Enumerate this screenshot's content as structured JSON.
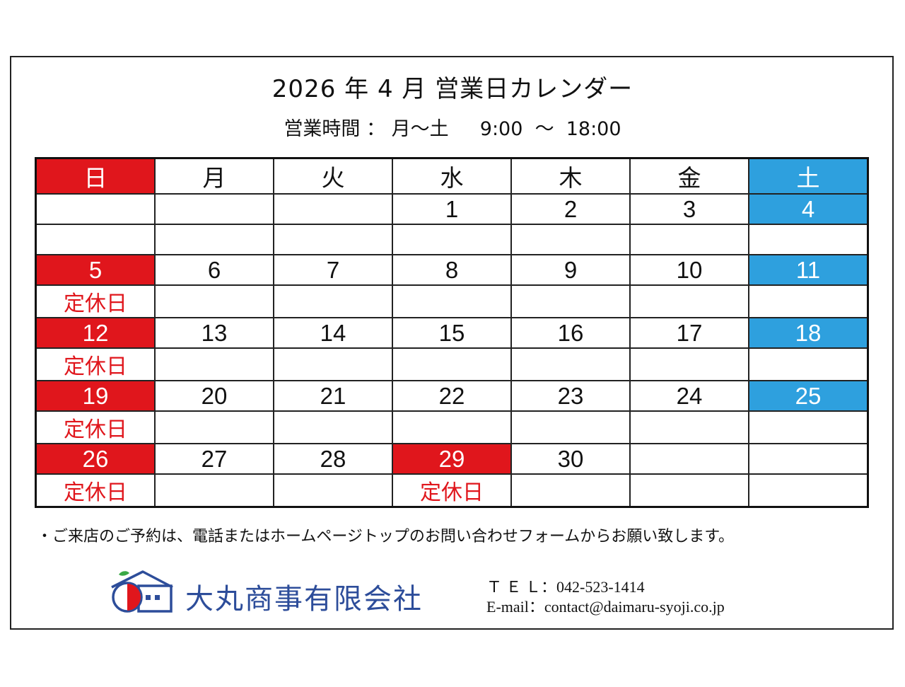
{
  "title": "2026 年 4 月  営業日カレンダー",
  "hours": "営業時間 ： 月～土　  9:00  ～  18:00",
  "weekdays": [
    "日",
    "月",
    "火",
    "水",
    "木",
    "金",
    "土"
  ],
  "closed_label": "定休日",
  "weeks": [
    {
      "days": [
        "",
        "",
        "",
        "1",
        "2",
        "3",
        "4"
      ],
      "notes": [
        "",
        "",
        "",
        "",
        "",
        "",
        ""
      ]
    },
    {
      "days": [
        "5",
        "6",
        "7",
        "8",
        "9",
        "10",
        "11"
      ],
      "notes": [
        "定休日",
        "",
        "",
        "",
        "",
        "",
        ""
      ]
    },
    {
      "days": [
        "12",
        "13",
        "14",
        "15",
        "16",
        "17",
        "18"
      ],
      "notes": [
        "定休日",
        "",
        "",
        "",
        "",
        "",
        ""
      ]
    },
    {
      "days": [
        "19",
        "20",
        "21",
        "22",
        "23",
        "24",
        "25"
      ],
      "notes": [
        "定休日",
        "",
        "",
        "",
        "",
        "",
        ""
      ]
    },
    {
      "days": [
        "26",
        "27",
        "28",
        "29",
        "30",
        "",
        ""
      ],
      "notes": [
        "定休日",
        "",
        "",
        "定休日",
        "",
        "",
        ""
      ]
    }
  ],
  "notice": "・ご来店のご予約は、電話またはホームページトップのお問い合わせフォームからお願い致します。",
  "company": "大丸商事有限会社",
  "tel": "Ｔ Ｅ Ｌ：042-523-1414",
  "email": "E-mail：contact@daimaru-syoji.co.jp",
  "colors": {
    "closed": "#e0161c",
    "saturday": "#2ea0de",
    "brand": "#2d4d9a"
  },
  "icons": [
    "house-apple-logo-icon"
  ]
}
